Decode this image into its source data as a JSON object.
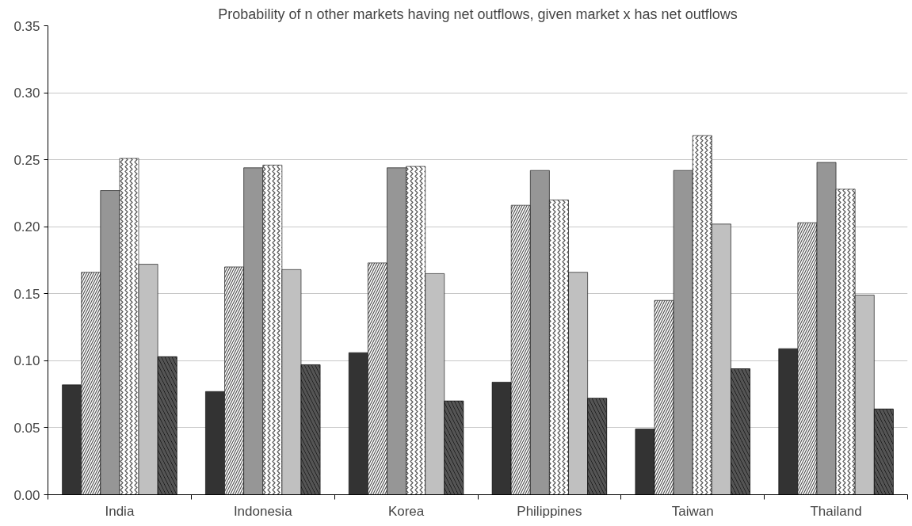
{
  "chart_data": {
    "type": "bar",
    "title": "Probability of n other markets having net outflows, given market x has net outflows",
    "categories": [
      "India",
      "Indonesia",
      "Korea",
      "Philippines",
      "Taiwan",
      "Thailand"
    ],
    "series": [
      {
        "color": "#333333",
        "values": [
          0.082,
          0.077,
          0.106,
          0.084,
          0.049,
          0.109
        ]
      },
      {
        "color": "#ffffff",
        "values": [
          0.166,
          0.17,
          0.173,
          0.216,
          0.145,
          0.203
        ]
      },
      {
        "color": "#969696",
        "values": [
          0.227,
          0.244,
          0.244,
          0.242,
          0.242,
          0.248
        ]
      },
      {
        "color": "#ffffff",
        "values": [
          0.251,
          0.246,
          0.245,
          0.22,
          0.268,
          0.228
        ]
      },
      {
        "color": "#c0c0c0",
        "values": [
          0.172,
          0.168,
          0.165,
          0.166,
          0.202,
          0.149
        ]
      },
      {
        "color": "#000000",
        "values": [
          0.103,
          0.097,
          0.07,
          0.072,
          0.094,
          0.064
        ]
      }
    ],
    "ylim": [
      0,
      0.35
    ],
    "yticks": [
      {
        "value": 0,
        "label": "0.00"
      },
      {
        "value": 0.05,
        "label": "0.05"
      },
      {
        "value": 0.1,
        "label": "0.10"
      },
      {
        "value": 0.15,
        "label": "0.15"
      },
      {
        "value": 0.2,
        "label": "0.20"
      },
      {
        "value": 0.25,
        "label": "0.25"
      },
      {
        "value": 0.3,
        "label": "0.30"
      },
      {
        "value": 0.35,
        "label": "0.35"
      }
    ],
    "grid": "y"
  }
}
